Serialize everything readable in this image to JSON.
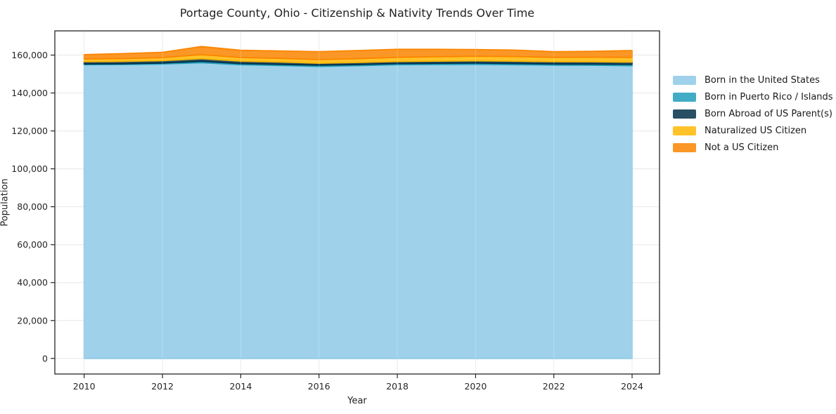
{
  "chart_data": {
    "type": "area",
    "stacked": true,
    "title": "Portage County, Ohio - Citizenship & Nativity Trends Over Time",
    "xlabel": "Year",
    "ylabel": "Population",
    "x": [
      2010,
      2011,
      2012,
      2013,
      2014,
      2015,
      2016,
      2017,
      2018,
      2019,
      2020,
      2021,
      2022,
      2023,
      2024
    ],
    "series": [
      {
        "name": "Born in the United States",
        "color": "#9fd2ea",
        "edge_color": "#8ecae6",
        "values": [
          154900,
          155000,
          155300,
          156000,
          154900,
          154500,
          154000,
          154400,
          154900,
          155000,
          155100,
          154900,
          154700,
          154600,
          154400
        ]
      },
      {
        "name": "Born in Puerto Rico / Islands",
        "color": "#42acc6",
        "edge_color": "#219ebc",
        "values": [
          400,
          450,
          500,
          700,
          600,
          600,
          700,
          600,
          600,
          650,
          700,
          650,
          600,
          650,
          700
        ]
      },
      {
        "name": "Born Abroad of US Parent(s)",
        "color": "#284f63",
        "edge_color": "#023047",
        "values": [
          1200,
          1200,
          1250,
          1400,
          1300,
          1250,
          1000,
          1100,
          1100,
          1150,
          1200,
          1250,
          1200,
          1200,
          1200
        ]
      },
      {
        "name": "Naturalized US Citizen",
        "color": "#ffc229",
        "edge_color": "#ffb703",
        "values": [
          1400,
          1500,
          1600,
          2100,
          1900,
          1900,
          1900,
          2000,
          2200,
          2300,
          2400,
          2400,
          2300,
          2400,
          2500
        ]
      },
      {
        "name": "Not a US Citizen",
        "color": "#fb9726",
        "edge_color": "#fb8500",
        "values": [
          2300,
          2600,
          2800,
          4300,
          3800,
          3900,
          4200,
          4300,
          4200,
          3900,
          3500,
          3400,
          3000,
          3100,
          3600
        ]
      }
    ],
    "xticks": [
      2010,
      2012,
      2014,
      2016,
      2018,
      2020,
      2022,
      2024
    ],
    "x_tick_labels": [
      "2010",
      "2012",
      "2014",
      "2016",
      "2018",
      "2020",
      "2022",
      "2024"
    ],
    "yticks": [
      0,
      20000,
      40000,
      60000,
      80000,
      100000,
      120000,
      140000,
      160000
    ],
    "y_tick_labels": [
      "0",
      "20,000",
      "40,000",
      "60,000",
      "80,000",
      "100,000",
      "120,000",
      "140,000",
      "160,000"
    ],
    "xlim": [
      2009.25,
      2024.7
    ],
    "ylim": [
      -8200,
      172750
    ],
    "grid": true,
    "grid_color": "#b0b0b0",
    "spine_color": "#262626",
    "tick_label_color": "#262626",
    "legend_position": "right outside"
  }
}
